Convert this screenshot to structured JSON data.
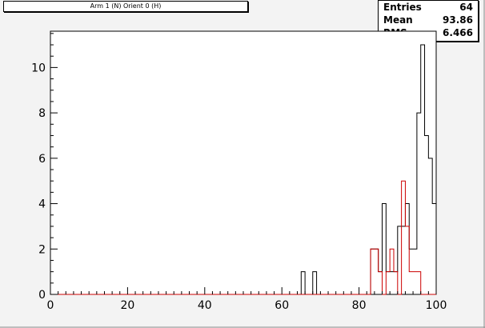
{
  "title_box": {
    "text": "Arm 1 (N) Orient 0 (H)"
  },
  "stats": [
    {
      "label": "Entries",
      "value": "64"
    },
    {
      "label": "Mean",
      "value": "93.86"
    },
    {
      "label": "RMS",
      "value": "6.466"
    }
  ],
  "chart_data": {
    "type": "histogram",
    "title": "Arm 1 (N) Orient 0 (H)",
    "xlabel": "",
    "ylabel": "",
    "xlim": [
      0,
      100
    ],
    "ylim": [
      0,
      11.6
    ],
    "bin_width": 1,
    "x_ticks": [
      0,
      20,
      40,
      60,
      80,
      100
    ],
    "x_tick_labels": [
      "0",
      "20",
      "40",
      "60",
      "80",
      "100"
    ],
    "y_ticks": [
      0,
      2,
      4,
      6,
      8,
      10
    ],
    "y_tick_labels": [
      "0",
      "2",
      "4",
      "6",
      "8",
      "10"
    ],
    "grid": false,
    "series": [
      {
        "color": "#000000",
        "bins": [
          {
            "x": 65,
            "y": 1
          },
          {
            "x": 68,
            "y": 1
          },
          {
            "x": 83,
            "y": 2
          },
          {
            "x": 84,
            "y": 2
          },
          {
            "x": 85,
            "y": 1
          },
          {
            "x": 86,
            "y": 4
          },
          {
            "x": 87,
            "y": 1
          },
          {
            "x": 88,
            "y": 1
          },
          {
            "x": 89,
            "y": 1
          },
          {
            "x": 90,
            "y": 3
          },
          {
            "x": 91,
            "y": 3
          },
          {
            "x": 92,
            "y": 4
          },
          {
            "x": 93,
            "y": 2
          },
          {
            "x": 94,
            "y": 2
          },
          {
            "x": 95,
            "y": 8
          },
          {
            "x": 96,
            "y": 11
          },
          {
            "x": 97,
            "y": 7
          },
          {
            "x": 98,
            "y": 6
          },
          {
            "x": 99,
            "y": 4
          }
        ]
      },
      {
        "color": "#cc0000",
        "bins": [
          {
            "x": 83,
            "y": 2
          },
          {
            "x": 84,
            "y": 2
          },
          {
            "x": 85,
            "y": 1
          },
          {
            "x": 87,
            "y": 1
          },
          {
            "x": 88,
            "y": 2
          },
          {
            "x": 89,
            "y": 1
          },
          {
            "x": 91,
            "y": 5
          },
          {
            "x": 92,
            "y": 3
          },
          {
            "x": 93,
            "y": 1
          },
          {
            "x": 94,
            "y": 1
          },
          {
            "x": 95,
            "y": 1
          }
        ]
      }
    ]
  }
}
